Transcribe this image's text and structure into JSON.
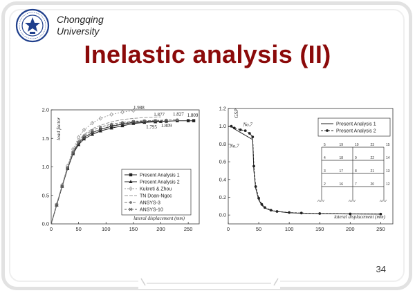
{
  "slide": {
    "university": [
      "Chongqing",
      "University"
    ],
    "title": "Inelastic analysis (II)",
    "page_number": "34"
  },
  "chart_data": [
    {
      "type": "line",
      "xlabel": "lateral displacement (mm)",
      "ylabel": "load factor",
      "xlim": [
        0,
        270
      ],
      "ylim": [
        0,
        2.0
      ],
      "xticks": [
        0,
        50,
        100,
        150,
        200,
        250
      ],
      "yticks": [
        0.0,
        0.5,
        1.0,
        1.5,
        2.0
      ],
      "xtick_labels": [
        "0",
        "50",
        "100",
        "150",
        "200",
        "250"
      ],
      "ytick_labels": [
        "0.0",
        "0.5",
        "1.0",
        "1.5",
        "2.0"
      ],
      "legend_position": "bottom-right",
      "series": [
        {
          "name": "Present Analysis 1",
          "color": "#222222",
          "dash": "",
          "marker": "square",
          "x": [
            0,
            10,
            20,
            30,
            40,
            50,
            60,
            75,
            90,
            110,
            130,
            150,
            170,
            190,
            210,
            230,
            250,
            260
          ],
          "y": [
            0,
            0.33,
            0.66,
            0.98,
            1.25,
            1.42,
            1.52,
            1.6,
            1.66,
            1.71,
            1.75,
            1.78,
            1.79,
            1.8,
            1.8,
            1.81,
            1.81,
            1.81
          ]
        },
        {
          "name": "Present Analysis 2",
          "color": "#222222",
          "dash": "",
          "marker": "triangle",
          "x": [
            0,
            10,
            20,
            30,
            40,
            50,
            60,
            75,
            90,
            110,
            130,
            150,
            170,
            190,
            200
          ],
          "y": [
            0,
            0.33,
            0.66,
            0.97,
            1.23,
            1.39,
            1.49,
            1.57,
            1.63,
            1.68,
            1.72,
            1.76,
            1.78,
            1.79,
            1.795
          ]
        },
        {
          "name": "Kukreti & Zhou",
          "color": "#9a9a9a",
          "dash": "2,2",
          "marker": "diamond",
          "x": [
            0,
            10,
            20,
            30,
            40,
            50,
            60,
            75,
            90,
            110,
            130,
            150
          ],
          "y": [
            0,
            0.34,
            0.68,
            1.02,
            1.31,
            1.52,
            1.65,
            1.77,
            1.85,
            1.92,
            1.96,
            1.988
          ]
        },
        {
          "name": "TN Doan-Ngoc",
          "color": "#999999",
          "dash": "5,2",
          "marker": "",
          "x": [
            0,
            10,
            20,
            30,
            40,
            50,
            60,
            75,
            90,
            110,
            130,
            150,
            170,
            190,
            200
          ],
          "y": [
            0,
            0.34,
            0.68,
            1.0,
            1.28,
            1.46,
            1.57,
            1.67,
            1.73,
            1.79,
            1.83,
            1.85,
            1.866,
            1.874,
            1.877
          ]
        },
        {
          "name": "ANSYS-3",
          "color": "#777777",
          "dash": "4,2",
          "marker": "circle",
          "x": [
            0,
            10,
            20,
            30,
            40,
            50,
            60,
            75,
            90,
            110,
            130,
            150,
            170,
            190,
            210,
            230
          ],
          "y": [
            0,
            0.34,
            0.67,
            0.99,
            1.26,
            1.44,
            1.55,
            1.64,
            1.7,
            1.75,
            1.78,
            1.8,
            1.81,
            1.815,
            1.822,
            1.827
          ]
        },
        {
          "name": "ANSYS-10",
          "color": "#555555",
          "dash": "3,2",
          "marker": "cross",
          "x": [
            0,
            10,
            20,
            30,
            40,
            50,
            60,
            75,
            90,
            110,
            130,
            150,
            170,
            190,
            210
          ],
          "y": [
            0,
            0.33,
            0.66,
            0.97,
            1.24,
            1.41,
            1.51,
            1.6,
            1.66,
            1.72,
            1.76,
            1.79,
            1.8,
            1.805,
            1.809
          ]
        }
      ],
      "annotations": [
        {
          "text": "1.988",
          "x": 160,
          "y": 2.01
        },
        {
          "text": "1.877",
          "x": 197,
          "y": 1.89
        },
        {
          "text": "1.827",
          "x": 232,
          "y": 1.9
        },
        {
          "text": "1.809",
          "x": 258,
          "y": 1.88
        },
        {
          "text": "1.795",
          "x": 183,
          "y": 1.67
        },
        {
          "text": "1.809",
          "x": 210,
          "y": 1.7
        }
      ]
    },
    {
      "type": "line",
      "xlabel": "lateral displacement (mm)",
      "ylabel": "GSP",
      "xlim": [
        0,
        270
      ],
      "ylim": [
        -0.1,
        1.2
      ],
      "xticks": [
        0,
        50,
        100,
        150,
        200,
        250
      ],
      "yticks": [
        0.0,
        0.2,
        0.4,
        0.6,
        0.8,
        1.0,
        1.2
      ],
      "xtick_labels": [
        "0",
        "50",
        "100",
        "150",
        "200",
        "250"
      ],
      "ytick_labels": [
        "0.0",
        "0.2",
        "0.4",
        "0.6",
        "0.8",
        "1.0",
        "1.2"
      ],
      "legend_position": "top-right",
      "series": [
        {
          "name": "Present Analysis 1",
          "color": "#222222",
          "dash": "",
          "marker": "",
          "x": [
            0,
            5,
            10,
            20,
            30,
            40,
            42,
            45,
            50,
            55,
            60,
            70,
            80,
            100,
            120,
            150,
            200,
            250
          ],
          "y": [
            1.0,
            1.0,
            0.97,
            0.93,
            0.89,
            0.85,
            0.5,
            0.3,
            0.17,
            0.11,
            0.08,
            0.05,
            0.04,
            0.025,
            0.02,
            0.015,
            0.012,
            0.01
          ]
        },
        {
          "name": "Present Analysis 2",
          "color": "#222222",
          "dash": "3,2",
          "marker": "circle",
          "x": [
            0,
            5,
            10,
            20,
            28,
            35,
            40,
            42,
            45,
            50,
            55,
            60,
            70,
            80,
            100,
            120,
            150,
            200,
            250
          ],
          "y": [
            1.0,
            1.0,
            0.98,
            0.96,
            0.95,
            0.92,
            0.88,
            0.55,
            0.32,
            0.19,
            0.12,
            0.085,
            0.055,
            0.04,
            0.028,
            0.022,
            0.017,
            0.013,
            0.011
          ]
        }
      ],
      "annotations": [
        {
          "text": "No.7",
          "x": 32,
          "y": 1.0
        },
        {
          "text": "No.7",
          "x": 10,
          "y": 0.76
        }
      ],
      "inset": {
        "node_rows": [
          [
            "5",
            "19",
            "10",
            "23",
            "15"
          ],
          [
            "4",
            "18",
            "9",
            "22",
            "14"
          ],
          [
            "3",
            "17",
            "8",
            "21",
            "13"
          ],
          [
            "2",
            "16",
            "7",
            "20",
            "12"
          ]
        ]
      }
    }
  ]
}
